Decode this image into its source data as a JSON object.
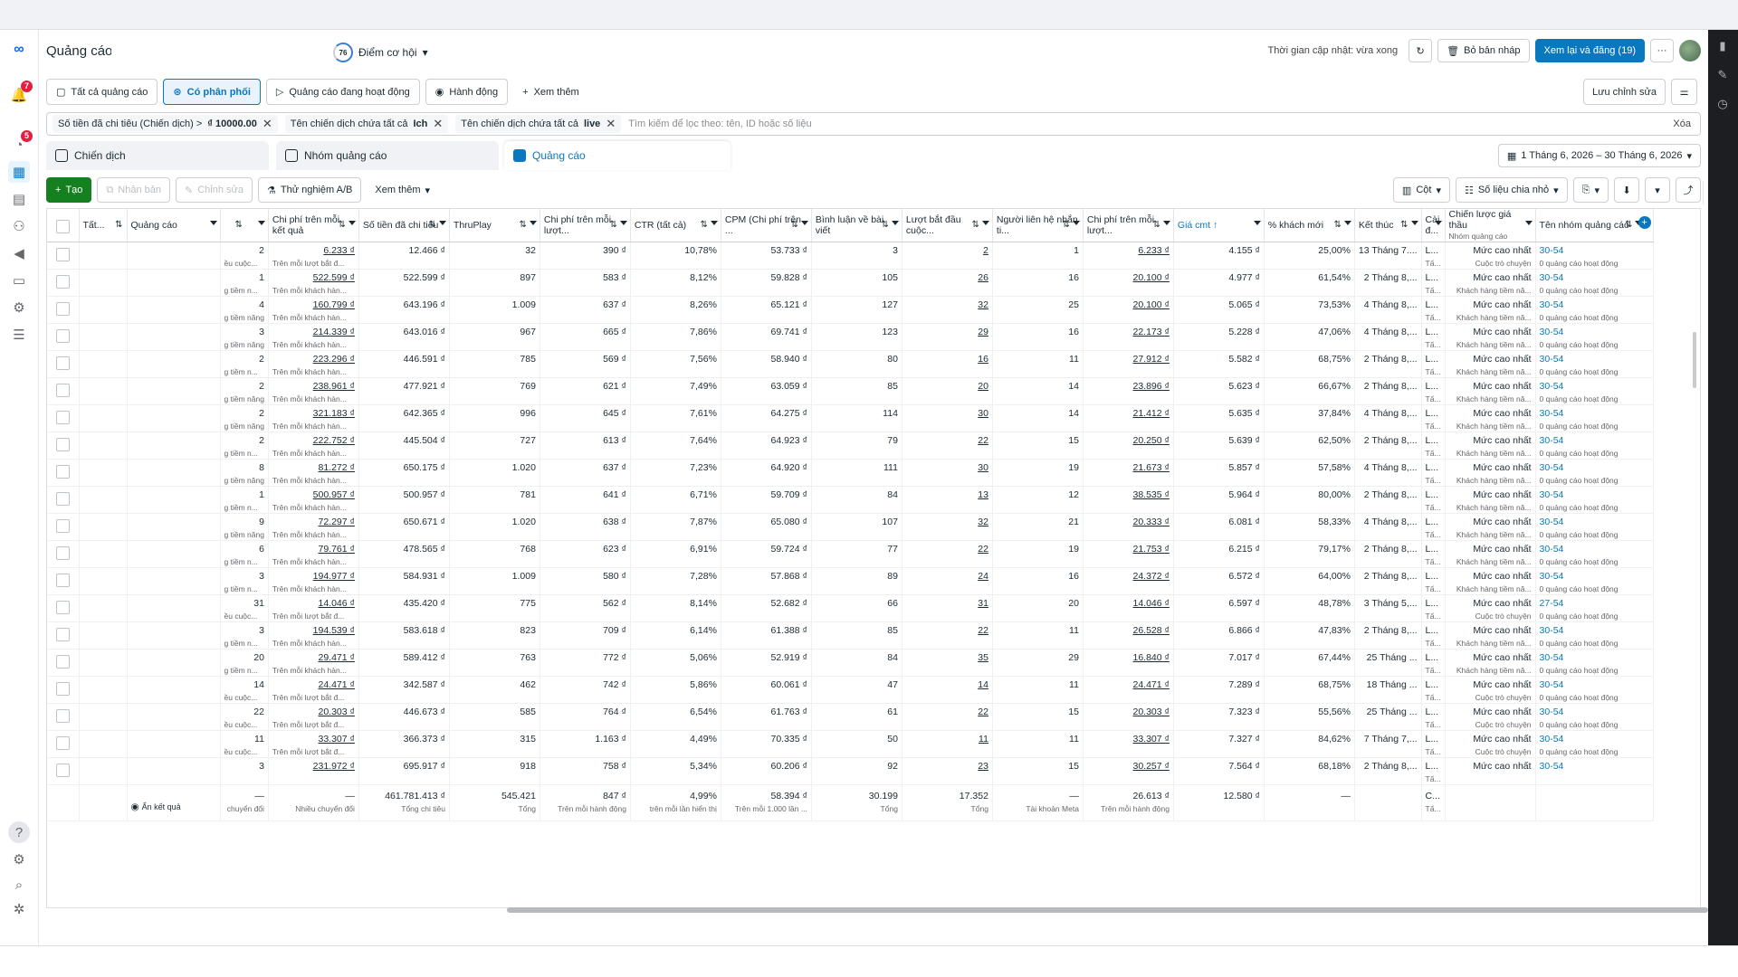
{
  "header": {
    "title": "Quảng cáo",
    "score": "76",
    "score_label": "Điểm cơ hội",
    "updated": "Thời gian cập nhật: vừa xong",
    "discard": "Bỏ bản nháp",
    "publish": "Xem lại và đăng (19)",
    "more": "···"
  },
  "tabs": [
    {
      "label": "Tất cả quảng cáo",
      "icon": "ads-icon"
    },
    {
      "label": "Có phân phối",
      "icon": "delivery-icon"
    },
    {
      "label": "Quảng cáo đang hoạt động",
      "icon": "play-icon"
    },
    {
      "label": "Hành động",
      "icon": "action-icon"
    },
    {
      "label": "Xem thêm",
      "icon": "plus-icon"
    }
  ],
  "save_edit": "Lưu chỉnh sửa",
  "filters": [
    {
      "field": "Số tiền đã chi tiêu (Chiến dịch) >",
      "value": "₫ 10000.00"
    },
    {
      "field": "Tên chiến dịch chứa tất cả",
      "value": "Ich"
    },
    {
      "field": "Tên chiến dịch chứa tất cả",
      "value": "live"
    }
  ],
  "search_placeholder": "Tìm kiếm để lọc theo: tên, ID hoặc số liệu",
  "clear": "Xóa",
  "levels": [
    "Chiến dịch",
    "Nhóm quảng cáo",
    "Quảng cáo"
  ],
  "date_range": "1 Tháng 6, 2026 – 30 Tháng 6, 2026",
  "actions": {
    "create": "Tạo",
    "duplicate": "Nhân bản",
    "edit": "Chỉnh sửa",
    "ab": "Thử nghiệm A/B",
    "more": "Xem thêm",
    "columns": "Cột",
    "breakdown": "Số liệu chia nhỏ"
  },
  "columns": [
    "Tất...",
    "Quảng cáo",
    "",
    "Chi phí trên mỗi kết quả",
    "Số tiền đã chi tiêu",
    "ThruPlay",
    "Chi phí trên mỗi lượt...",
    "CTR (tất cả)",
    "CPM (Chi phí trên ...",
    "Bình luận về bài viết",
    "Lượt bắt đầu cuộc...",
    "Người liên hệ nhắn ti...",
    "Chi phí trên mỗi lượt...",
    "Giá cmt ↑",
    "% khách mới",
    "Kết thúc",
    "Cài đ...",
    "Chiến lược giá thầu",
    "Tên nhóm quảng cáo"
  ],
  "bid_sub": "Nhóm quảng cáo",
  "rows": [
    {
      "r": "2",
      "rs": "ều cuộc...",
      "cpr": "6.233 ₫",
      "cprs": "Trên mỗi lượt bắt đ...",
      "sp": "12.466 ₫",
      "tp": "32",
      "cpt": "390 ₫",
      "ctr": "10,78%",
      "cpm": "53.733 ₫",
      "cm": "3",
      "lb": "2",
      "ng": "1",
      "cpl": "6.233 ₫",
      "gia": "4.155 ₫",
      "pct": "25,00%",
      "end": "13 Tháng 7....",
      "cai": "L...",
      "bid": "Mức cao nhất",
      "bids": "Cuộc trò chuyện",
      "ag": "30-54",
      "ags": "0 quảng cáo hoạt động"
    },
    {
      "r": "1",
      "rs": "g tiềm n...",
      "cpr": "522.599 ₫",
      "cprs": "Trên mỗi khách hàn...",
      "sp": "522.599 ₫",
      "tp": "897",
      "cpt": "583 ₫",
      "ctr": "8,12%",
      "cpm": "59.828 ₫",
      "cm": "105",
      "lb": "26",
      "ng": "16",
      "cpl": "20.100 ₫",
      "gia": "4.977 ₫",
      "pct": "61,54%",
      "end": "2 Tháng 8,...",
      "cai": "L...",
      "bid": "Mức cao nhất",
      "bids": "Khách hàng tiềm nă...",
      "ag": "30-54",
      "ags": "0 quảng cáo hoạt động"
    },
    {
      "r": "4",
      "rs": "g tiềm năng",
      "cpr": "160.799 ₫",
      "cprs": "Trên mỗi khách hàn...",
      "sp": "643.196 ₫",
      "tp": "1.009",
      "cpt": "637 ₫",
      "ctr": "8,26%",
      "cpm": "65.121 ₫",
      "cm": "127",
      "lb": "32",
      "ng": "25",
      "cpl": "20.100 ₫",
      "gia": "5.065 ₫",
      "pct": "73,53%",
      "end": "4 Tháng 8,...",
      "cai": "L...",
      "bid": "Mức cao nhất",
      "bids": "Khách hàng tiềm nă...",
      "ag": "30-54",
      "ags": "0 quảng cáo hoạt động"
    },
    {
      "r": "3",
      "rs": "g tiềm năng",
      "cpr": "214.339 ₫",
      "cprs": "Trên mỗi khách hàn...",
      "sp": "643.016 ₫",
      "tp": "967",
      "cpt": "665 ₫",
      "ctr": "7,86%",
      "cpm": "69.741 ₫",
      "cm": "123",
      "lb": "29",
      "ng": "16",
      "cpl": "22.173 ₫",
      "gia": "5.228 ₫",
      "pct": "47,06%",
      "end": "4 Tháng 8,...",
      "cai": "L...",
      "bid": "Mức cao nhất",
      "bids": "Khách hàng tiềm nă...",
      "ag": "30-54",
      "ags": "0 quảng cáo hoạt động"
    },
    {
      "r": "2",
      "rs": "g tiềm n...",
      "cpr": "223.296 ₫",
      "cprs": "Trên mỗi khách hàn...",
      "sp": "446.591 ₫",
      "tp": "785",
      "cpt": "569 ₫",
      "ctr": "7,56%",
      "cpm": "58.940 ₫",
      "cm": "80",
      "lb": "16",
      "ng": "11",
      "cpl": "27.912 ₫",
      "gia": "5.582 ₫",
      "pct": "68,75%",
      "end": "2 Tháng 8,...",
      "cai": "L...",
      "bid": "Mức cao nhất",
      "bids": "Khách hàng tiềm nă...",
      "ag": "30-54",
      "ags": "0 quảng cáo hoạt động"
    },
    {
      "r": "2",
      "rs": "g tiềm năng",
      "cpr": "238.961 ₫",
      "cprs": "Trên mỗi khách hàn...",
      "sp": "477.921 ₫",
      "tp": "769",
      "cpt": "621 ₫",
      "ctr": "7,49%",
      "cpm": "63.059 ₫",
      "cm": "85",
      "lb": "20",
      "ng": "14",
      "cpl": "23.896 ₫",
      "gia": "5.623 ₫",
      "pct": "66,67%",
      "end": "2 Tháng 8,...",
      "cai": "L...",
      "bid": "Mức cao nhất",
      "bids": "Khách hàng tiềm nă...",
      "ag": "30-54",
      "ags": "0 quảng cáo hoạt động"
    },
    {
      "r": "2",
      "rs": "g tiềm năng",
      "cpr": "321.183 ₫",
      "cprs": "Trên mỗi khách hàn...",
      "sp": "642.365 ₫",
      "tp": "996",
      "cpt": "645 ₫",
      "ctr": "7,61%",
      "cpm": "64.275 ₫",
      "cm": "114",
      "lb": "30",
      "ng": "14",
      "cpl": "21.412 ₫",
      "gia": "5.635 ₫",
      "pct": "37,84%",
      "end": "4 Tháng 8,...",
      "cai": "L...",
      "bid": "Mức cao nhất",
      "bids": "Khách hàng tiềm nă...",
      "ag": "30-54",
      "ags": "0 quảng cáo hoạt động"
    },
    {
      "r": "2",
      "rs": "g tiềm n...",
      "cpr": "222.752 ₫",
      "cprs": "Trên mỗi khách hàn...",
      "sp": "445.504 ₫",
      "tp": "727",
      "cpt": "613 ₫",
      "ctr": "7,64%",
      "cpm": "64.923 ₫",
      "cm": "79",
      "lb": "22",
      "ng": "15",
      "cpl": "20.250 ₫",
      "gia": "5.639 ₫",
      "pct": "62,50%",
      "end": "2 Tháng 8,...",
      "cai": "L...",
      "bid": "Mức cao nhất",
      "bids": "Khách hàng tiềm nă...",
      "ag": "30-54",
      "ags": "0 quảng cáo hoạt động"
    },
    {
      "r": "8",
      "rs": "g tiềm năng",
      "cpr": "81.272 ₫",
      "cprs": "Trên mỗi khách hàn...",
      "sp": "650.175 ₫",
      "tp": "1.020",
      "cpt": "637 ₫",
      "ctr": "7,23%",
      "cpm": "64.920 ₫",
      "cm": "111",
      "lb": "30",
      "ng": "19",
      "cpl": "21.673 ₫",
      "gia": "5.857 ₫",
      "pct": "57,58%",
      "end": "4 Tháng 8,...",
      "cai": "L...",
      "bid": "Mức cao nhất",
      "bids": "Khách hàng tiềm nă...",
      "ag": "30-54",
      "ags": "0 quảng cáo hoạt động"
    },
    {
      "r": "1",
      "rs": "g tiềm n...",
      "cpr": "500.957 ₫",
      "cprs": "Trên mỗi khách hàn...",
      "sp": "500.957 ₫",
      "tp": "781",
      "cpt": "641 ₫",
      "ctr": "6,71%",
      "cpm": "59.709 ₫",
      "cm": "84",
      "lb": "13",
      "ng": "12",
      "cpl": "38.535 ₫",
      "gia": "5.964 ₫",
      "pct": "80,00%",
      "end": "2 Tháng 8,...",
      "cai": "L...",
      "bid": "Mức cao nhất",
      "bids": "Khách hàng tiềm nă...",
      "ag": "30-54",
      "ags": "0 quảng cáo hoạt động"
    },
    {
      "r": "9",
      "rs": "g tiềm năng",
      "cpr": "72.297 ₫",
      "cprs": "Trên mỗi khách hàn...",
      "sp": "650.671 ₫",
      "tp": "1.020",
      "cpt": "638 ₫",
      "ctr": "7,87%",
      "cpm": "65.080 ₫",
      "cm": "107",
      "lb": "32",
      "ng": "21",
      "cpl": "20.333 ₫",
      "gia": "6.081 ₫",
      "pct": "58,33%",
      "end": "4 Tháng 8,...",
      "cai": "L...",
      "bid": "Mức cao nhất",
      "bids": "Khách hàng tiềm nă...",
      "ag": "30-54",
      "ags": "0 quảng cáo hoạt động"
    },
    {
      "r": "6",
      "rs": "g tiềm n...",
      "cpr": "79.761 ₫",
      "cprs": "Trên mỗi khách hàn...",
      "sp": "478.565 ₫",
      "tp": "768",
      "cpt": "623 ₫",
      "ctr": "6,91%",
      "cpm": "59.724 ₫",
      "cm": "77",
      "lb": "22",
      "ng": "19",
      "cpl": "21.753 ₫",
      "gia": "6.215 ₫",
      "pct": "79,17%",
      "end": "2 Tháng 8,...",
      "cai": "L...",
      "bid": "Mức cao nhất",
      "bids": "Khách hàng tiềm nă...",
      "ag": "30-54",
      "ags": "0 quảng cáo hoạt động"
    },
    {
      "r": "3",
      "rs": "g tiềm n...",
      "cpr": "194.977 ₫",
      "cprs": "Trên mỗi khách hàn...",
      "sp": "584.931 ₫",
      "tp": "1.009",
      "cpt": "580 ₫",
      "ctr": "7,28%",
      "cpm": "57.868 ₫",
      "cm": "89",
      "lb": "24",
      "ng": "16",
      "cpl": "24.372 ₫",
      "gia": "6.572 ₫",
      "pct": "64,00%",
      "end": "2 Tháng 8,...",
      "cai": "L...",
      "bid": "Mức cao nhất",
      "bids": "Khách hàng tiềm nă...",
      "ag": "30-54",
      "ags": "0 quảng cáo hoạt động"
    },
    {
      "r": "31",
      "rs": "ều cuộc...",
      "cpr": "14.046 ₫",
      "cprs": "Trên mỗi lượt bắt đ...",
      "sp": "435.420 ₫",
      "tp": "775",
      "cpt": "562 ₫",
      "ctr": "8,14%",
      "cpm": "52.682 ₫",
      "cm": "66",
      "lb": "31",
      "ng": "20",
      "cpl": "14.046 ₫",
      "gia": "6.597 ₫",
      "pct": "48,78%",
      "end": "3 Tháng 5,...",
      "cai": "L...",
      "bid": "Mức cao nhất",
      "bids": "Cuộc trò chuyện",
      "ag": "27-54",
      "ags": "0 quảng cáo hoạt động"
    },
    {
      "r": "3",
      "rs": "g tiềm n...",
      "cpr": "194.539 ₫",
      "cprs": "Trên mỗi khách hàn...",
      "sp": "583.618 ₫",
      "tp": "823",
      "cpt": "709 ₫",
      "ctr": "6,14%",
      "cpm": "61.388 ₫",
      "cm": "85",
      "lb": "22",
      "ng": "11",
      "cpl": "26.528 ₫",
      "gia": "6.866 ₫",
      "pct": "47,83%",
      "end": "2 Tháng 8,...",
      "cai": "L...",
      "bid": "Mức cao nhất",
      "bids": "Khách hàng tiềm nă...",
      "ag": "30-54",
      "ags": "0 quảng cáo hoạt động"
    },
    {
      "r": "20",
      "rs": "g tiềm n...",
      "cpr": "29.471 ₫",
      "cprs": "Trên mỗi khách hàn...",
      "sp": "589.412 ₫",
      "tp": "763",
      "cpt": "772 ₫",
      "ctr": "5,06%",
      "cpm": "52.919 ₫",
      "cm": "84",
      "lb": "35",
      "ng": "29",
      "cpl": "16.840 ₫",
      "gia": "7.017 ₫",
      "pct": "67,44%",
      "end": "25 Tháng ...",
      "cai": "L...",
      "bid": "Mức cao nhất",
      "bids": "Khách hàng tiềm nă...",
      "ag": "30-54",
      "ags": "0 quảng cáo hoạt động"
    },
    {
      "r": "14",
      "rs": "ều cuộc...",
      "cpr": "24.471 ₫",
      "cprs": "Trên mỗi lượt bắt đ...",
      "sp": "342.587 ₫",
      "tp": "462",
      "cpt": "742 ₫",
      "ctr": "5,86%",
      "cpm": "60.061 ₫",
      "cm": "47",
      "lb": "14",
      "ng": "11",
      "cpl": "24.471 ₫",
      "gia": "7.289 ₫",
      "pct": "68,75%",
      "end": "18 Tháng ...",
      "cai": "L...",
      "bid": "Mức cao nhất",
      "bids": "Cuộc trò chuyện",
      "ag": "30-54",
      "ags": "0 quảng cáo hoạt động"
    },
    {
      "r": "22",
      "rs": "ều cuộc...",
      "cpr": "20.303 ₫",
      "cprs": "Trên mỗi lượt bắt đ...",
      "sp": "446.673 ₫",
      "tp": "585",
      "cpt": "764 ₫",
      "ctr": "6,54%",
      "cpm": "61.763 ₫",
      "cm": "61",
      "lb": "22",
      "ng": "15",
      "cpl": "20.303 ₫",
      "gia": "7.323 ₫",
      "pct": "55,56%",
      "end": "25 Tháng ...",
      "cai": "L...",
      "bid": "Mức cao nhất",
      "bids": "Cuộc trò chuyện",
      "ag": "30-54",
      "ags": "0 quảng cáo hoạt động"
    },
    {
      "r": "11",
      "rs": "ều cuộc...",
      "cpr": "33.307 ₫",
      "cprs": "Trên mỗi lượt bắt đ...",
      "sp": "366.373 ₫",
      "tp": "315",
      "cpt": "1.163 ₫",
      "ctr": "4,49%",
      "cpm": "70.335 ₫",
      "cm": "50",
      "lb": "11",
      "ng": "11",
      "cpl": "33.307 ₫",
      "gia": "7.327 ₫",
      "pct": "84,62%",
      "end": "7 Tháng 7,...",
      "cai": "L...",
      "bid": "Mức cao nhất",
      "bids": "Cuộc trò chuyện",
      "ag": "30-54",
      "ags": "0 quảng cáo hoạt động"
    },
    {
      "r": "3",
      "rs": "",
      "cpr": "231.972 ₫",
      "cprs": "",
      "sp": "695.917 ₫",
      "tp": "918",
      "cpt": "758 ₫",
      "ctr": "5,34%",
      "cpm": "60.206 ₫",
      "cm": "92",
      "lb": "23",
      "ng": "15",
      "cpl": "30.257 ₫",
      "gia": "7.564 ₫",
      "pct": "68,18%",
      "end": "2 Tháng 8,...",
      "cai": "L...",
      "bid": "Mức cao nhất",
      "bids": "",
      "ag": "30-54",
      "ags": ""
    }
  ],
  "totals": {
    "label": "Ẩn kết quả",
    "r": "—",
    "rs": "chuyển đổi",
    "cpr": "—",
    "cprs": "Nhiều chuyển đổi",
    "sp": "461.781.413 ₫",
    "sps": "Tổng chi tiêu",
    "tp": "545.421",
    "tps": "Tổng",
    "cpt": "847 ₫",
    "cpts": "Trên mỗi hành động",
    "ctr": "4,99%",
    "ctrs": "trên mỗi lần hiển thị",
    "cpm": "58.394 ₫",
    "cpms": "Trên mỗi 1.000 lần ...",
    "cm": "30.199",
    "cms": "Tổng",
    "lb": "17.352",
    "lbs": "Tổng",
    "ng": "—",
    "ngs": "Tài khoản Meta",
    "cpl": "26.613 ₫",
    "cpls": "Trên mỗi hành động",
    "gia": "12.580 ₫",
    "pct": "—",
    "cai": "C...",
    "cais": "Tấ..."
  }
}
